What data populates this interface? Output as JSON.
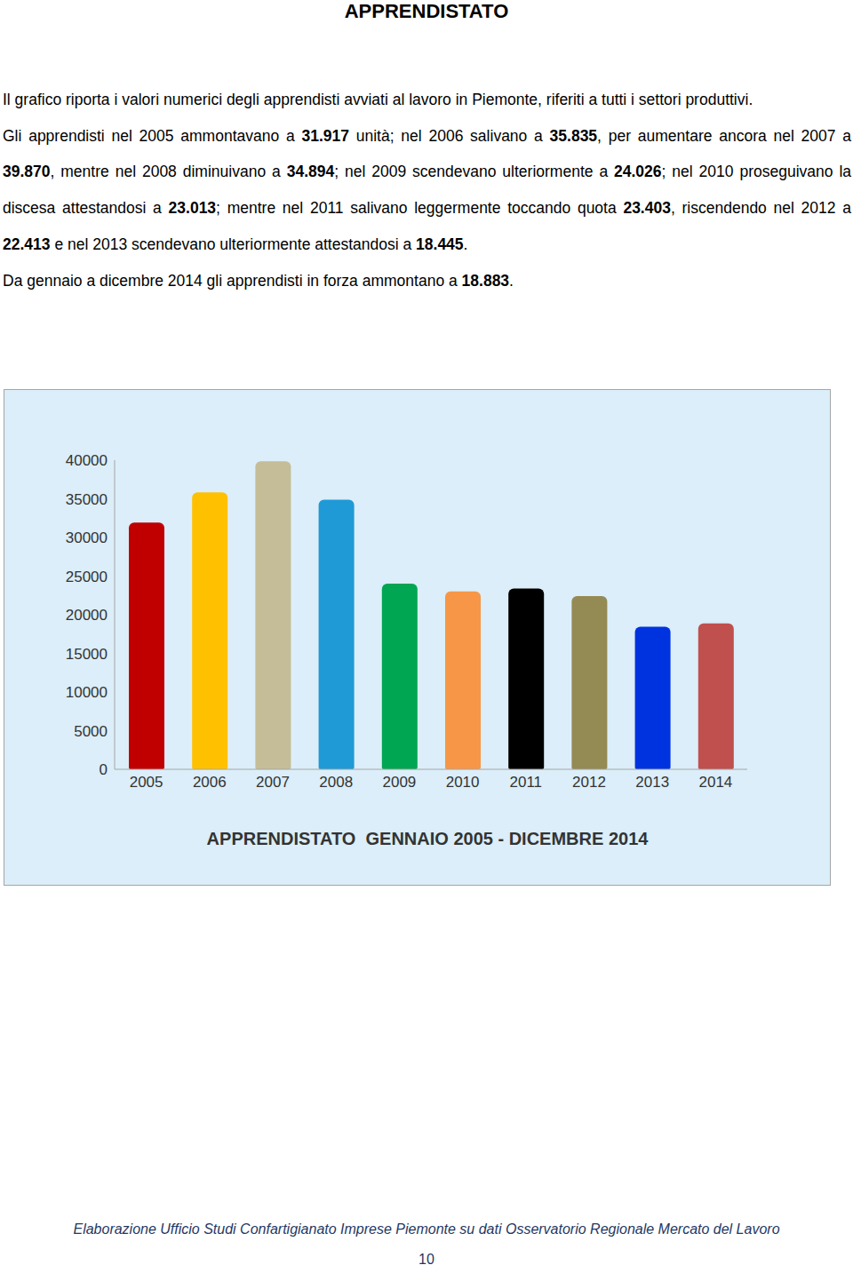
{
  "title": "APPRENDISTATO",
  "paragraphs": [
    [
      {
        "text": "Il grafico riporta i valori numerici degli apprendisti avviati al lavoro in Piemonte, riferiti a tutti i settori produttivi.",
        "bold": false
      }
    ],
    [
      {
        "text": "Gli apprendisti nel 2005 ammontavano a ",
        "bold": false
      },
      {
        "text": "31.917",
        "bold": true
      },
      {
        "text": " unità; nel 2006 salivano a ",
        "bold": false
      },
      {
        "text": "35.835",
        "bold": true
      },
      {
        "text": ", per aumentare ancora nel 2007 a ",
        "bold": false
      },
      {
        "text": "39.870",
        "bold": true
      },
      {
        "text": ", mentre nel 2008 diminuivano a ",
        "bold": false
      },
      {
        "text": "34.894",
        "bold": true
      },
      {
        "text": "; nel 2009 scendevano ulteriormente a ",
        "bold": false
      },
      {
        "text": "24.026",
        "bold": true
      },
      {
        "text": "; nel 2010 proseguivano la discesa attestandosi a ",
        "bold": false
      },
      {
        "text": "23.013",
        "bold": true
      },
      {
        "text": "; mentre nel 2011 salivano leggermente toccando quota ",
        "bold": false
      },
      {
        "text": "23.403",
        "bold": true
      },
      {
        "text": ", riscendendo nel 2012 a ",
        "bold": false
      },
      {
        "text": "22.413",
        "bold": true
      },
      {
        "text": " e nel 2013 scendevano ulteriormente attestandosi a ",
        "bold": false
      },
      {
        "text": "18.445",
        "bold": true
      },
      {
        "text": ".",
        "bold": false
      }
    ],
    [
      {
        "text": "Da gennaio a dicembre 2014 gli apprendisti in forza ammontano a ",
        "bold": false
      },
      {
        "text": "18.883",
        "bold": true
      },
      {
        "text": ".",
        "bold": false
      }
    ]
  ],
  "chart_data": {
    "type": "bar",
    "title": "APPRENDISTATO  GENNAIO 2005 - DICEMBRE 2014",
    "categories": [
      "2005",
      "2006",
      "2007",
      "2008",
      "2009",
      "2010",
      "2011",
      "2012",
      "2013",
      "2014"
    ],
    "values": [
      31917,
      35835,
      39870,
      34894,
      24026,
      23013,
      23403,
      22413,
      18445,
      18883
    ],
    "colors": [
      "#c00000",
      "#ffc000",
      "#c4bd97",
      "#1f9ad6",
      "#00a651",
      "#f79646",
      "#000000",
      "#948a54",
      "#0033e0",
      "#c0504d"
    ],
    "ylim": [
      0,
      40000
    ],
    "yticks": [
      0,
      5000,
      10000,
      15000,
      20000,
      25000,
      30000,
      35000,
      40000
    ],
    "grid": false
  },
  "footer": "Elaborazione Ufficio Studi Confartigianato Imprese Piemonte su dati Osservatorio Regionale Mercato del Lavoro",
  "page_number": "10"
}
